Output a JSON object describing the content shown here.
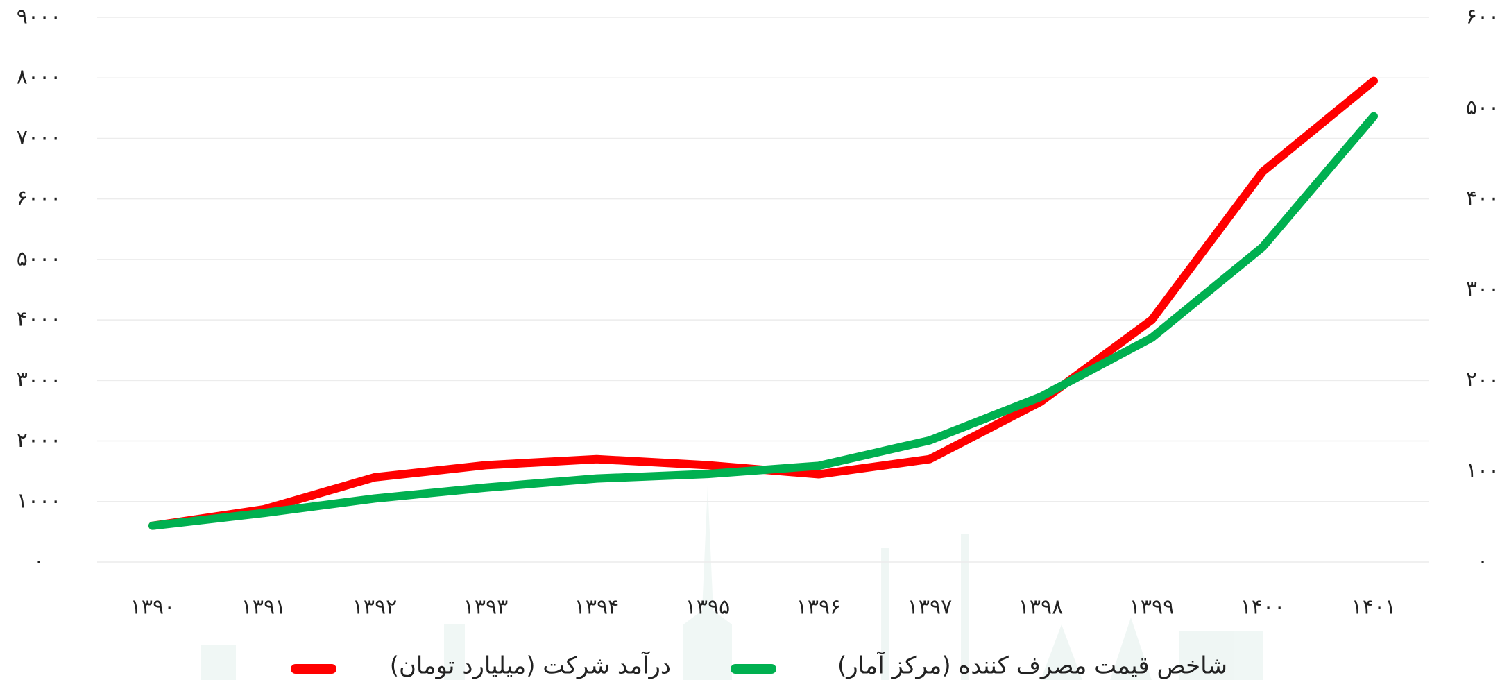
{
  "chart_data": {
    "type": "line",
    "categories": [
      "۱۳۹۰",
      "۱۳۹۱",
      "۱۳۹۲",
      "۱۳۹۳",
      "۱۳۹۴",
      "۱۳۹۵",
      "۱۳۹۶",
      "۱۳۹۷",
      "۱۳۹۸",
      "۱۳۹۹",
      "۱۴۰۰",
      "۱۴۰۱"
    ],
    "series": [
      {
        "name": "درآمد شرکت (میلیارد تومان)",
        "color": "#ff0000",
        "values": [
          600,
          870,
          1400,
          1600,
          1700,
          1600,
          1450,
          1700,
          2650,
          4000,
          6450,
          7950
        ]
      },
      {
        "name": "شاخص قیمت مصرف کننده (مرکز آمار)",
        "color": "#00b050",
        "axis": "y2",
        "values": [
          40,
          54,
          70,
          82,
          92,
          97,
          106,
          134,
          182,
          247,
          347,
          491
        ]
      }
    ],
    "ylim": [
      0,
      9000
    ],
    "yticks": [
      {
        "value": 0,
        "label": "۰"
      },
      {
        "value": 1000,
        "label": "۱۰۰۰"
      },
      {
        "value": 2000,
        "label": "۲۰۰۰"
      },
      {
        "value": 3000,
        "label": "۳۰۰۰"
      },
      {
        "value": 4000,
        "label": "۴۰۰۰"
      },
      {
        "value": 5000,
        "label": "۵۰۰۰"
      },
      {
        "value": 6000,
        "label": "۶۰۰۰"
      },
      {
        "value": 7000,
        "label": "۷۰۰۰"
      },
      {
        "value": 8000,
        "label": "۸۰۰۰"
      },
      {
        "value": 9000,
        "label": "۹۰۰۰"
      }
    ],
    "y2lim": [
      0,
      600
    ],
    "y2ticks": [
      {
        "value": 0,
        "label": "۰"
      },
      {
        "value": 100,
        "label": "۱۰۰"
      },
      {
        "value": 200,
        "label": "۲۰۰"
      },
      {
        "value": 300,
        "label": "۳۰۰"
      },
      {
        "value": 400,
        "label": "۴۰۰"
      },
      {
        "value": 500,
        "label": "۵۰۰"
      },
      {
        "value": 600,
        "label": "۶۰۰"
      }
    ],
    "grid": true
  }
}
